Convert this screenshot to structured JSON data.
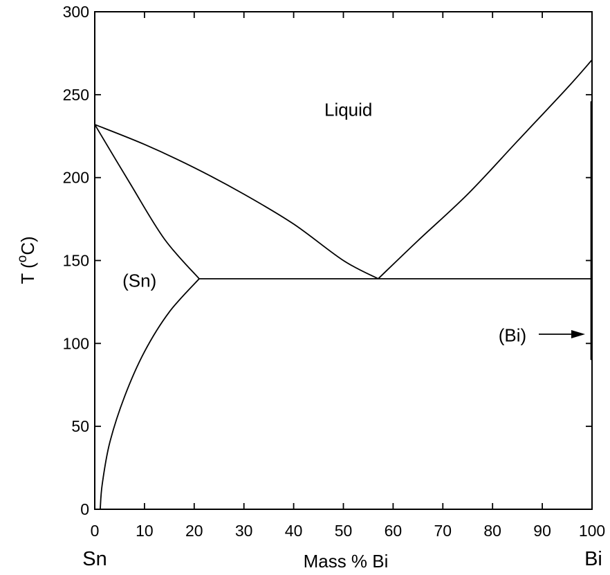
{
  "chart_data": {
    "type": "line",
    "xlabel": "Mass % Bi",
    "ylabel_main": "T (",
    "ylabel_sup": "o",
    "ylabel_end": "C)",
    "xlim": [
      0,
      100
    ],
    "ylim": [
      0,
      300
    ],
    "x_ticks": [
      0,
      10,
      20,
      30,
      40,
      50,
      60,
      70,
      80,
      90,
      100
    ],
    "y_ticks": [
      0,
      50,
      100,
      150,
      200,
      250,
      300
    ],
    "left_element": "Sn",
    "right_element": "Bi",
    "region_labels": [
      {
        "text": "Liquid",
        "x": 51,
        "y": 241
      },
      {
        "text": "(Sn)",
        "x": 9,
        "y": 138
      },
      {
        "text": "(Bi)",
        "x": 84,
        "y": 105
      }
    ],
    "series": [
      {
        "key": "liquidus-sn",
        "points": [
          [
            0,
            232
          ],
          [
            10,
            220
          ],
          [
            20,
            206
          ],
          [
            30,
            190
          ],
          [
            40,
            172
          ],
          [
            50,
            150
          ],
          [
            57,
            139
          ]
        ]
      },
      {
        "key": "liquidus-bi",
        "points": [
          [
            57,
            139
          ],
          [
            65,
            162
          ],
          [
            75,
            190
          ],
          [
            85,
            222
          ],
          [
            95,
            254
          ],
          [
            100,
            271
          ]
        ]
      },
      {
        "key": "solidus-sn",
        "points": [
          [
            0,
            232
          ],
          [
            7,
            197
          ],
          [
            14,
            163
          ],
          [
            21,
            139
          ]
        ]
      },
      {
        "key": "solvus-sn",
        "points": [
          [
            21,
            139
          ],
          [
            15,
            119
          ],
          [
            10,
            95
          ],
          [
            6,
            68
          ],
          [
            3,
            40
          ],
          [
            1.5,
            15
          ],
          [
            1.1,
            0
          ]
        ]
      },
      {
        "key": "eutectic-line",
        "points": [
          [
            21,
            139
          ],
          [
            100,
            139
          ]
        ]
      },
      {
        "key": "bi-solidus",
        "points": [
          [
            99.8,
            246
          ],
          [
            99.8,
            90
          ]
        ]
      }
    ]
  }
}
